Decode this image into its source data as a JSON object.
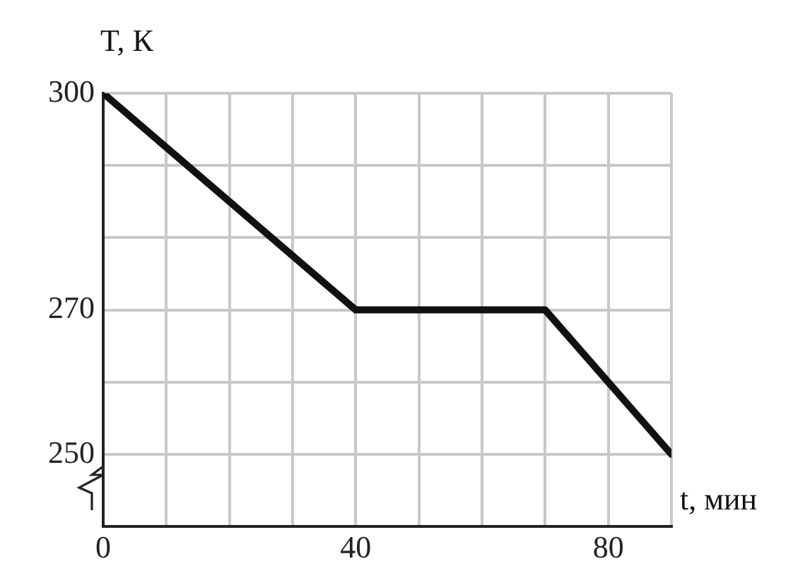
{
  "chart_data": {
    "type": "line",
    "xlabel": "t, мин",
    "ylabel": "T, К",
    "x": [
      0,
      40,
      70,
      90
    ],
    "series": [
      {
        "color": "#111111",
        "values": [
          300,
          270,
          270,
          250
        ]
      }
    ],
    "xlim": [
      0,
      90
    ],
    "xticks": [
      0,
      {
        "value": 10,
        "label": null
      },
      {
        "value": 20,
        "label": null
      },
      {
        "value": 30,
        "label": null
      },
      40,
      {
        "value": 50,
        "label": null
      },
      {
        "value": 60,
        "label": null
      },
      {
        "value": 70,
        "label": null
      },
      80,
      {
        "value": 90,
        "label": null
      }
    ],
    "ylim": [
      240,
      300
    ],
    "yticks": [
      {
        "value": 240,
        "label": null
      },
      250,
      {
        "value": 260,
        "label": null
      },
      270,
      {
        "value": 280,
        "label": null
      },
      {
        "value": 290,
        "label": null
      },
      300
    ],
    "grid": true,
    "legend": false,
    "marker": "none",
    "line_style": "solid"
  }
}
